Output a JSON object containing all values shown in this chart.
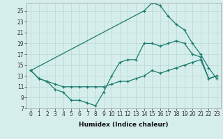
{
  "xlabel": "Humidex (Indice chaleur)",
  "bg_color": "#d5eeeb",
  "line_color": "#1a7a6e",
  "grid_color": "#b8d8d4",
  "xlim": [
    -0.5,
    23.5
  ],
  "ylim": [
    7,
    26.5
  ],
  "xticks": [
    0,
    1,
    2,
    3,
    4,
    5,
    6,
    7,
    8,
    9,
    10,
    11,
    12,
    13,
    14,
    15,
    16,
    17,
    18,
    19,
    20,
    21,
    22,
    23
  ],
  "yticks": [
    7,
    9,
    11,
    13,
    15,
    17,
    19,
    21,
    23,
    25
  ],
  "series1_x": [
    0,
    1,
    2,
    3,
    4,
    5,
    6,
    7,
    8,
    9,
    10,
    11,
    12,
    13,
    14,
    15,
    16,
    17,
    18,
    19,
    20,
    21,
    22,
    23
  ],
  "series1_y": [
    14,
    12.5,
    12,
    10.5,
    10,
    8.5,
    8.5,
    8,
    7.5,
    10,
    13,
    15.5,
    16,
    16,
    19,
    19,
    18.5,
    19,
    19.5,
    19,
    17,
    16.5,
    12.5,
    13
  ],
  "series2_x": [
    0,
    1,
    2,
    3,
    4,
    5,
    6,
    7,
    8,
    9,
    10,
    11,
    12,
    13,
    14,
    15,
    16,
    17,
    18,
    19,
    20,
    21,
    22,
    23
  ],
  "series2_y": [
    14,
    12.5,
    12,
    11.5,
    11,
    11,
    11,
    11,
    11,
    11,
    11.5,
    12,
    12,
    12.5,
    13,
    14,
    13.5,
    14,
    14.5,
    15,
    15.5,
    16,
    12.5,
    13
  ],
  "series3_x": [
    0,
    14,
    15,
    16,
    17,
    18,
    19,
    20,
    21,
    22,
    23
  ],
  "series3_y": [
    14,
    25,
    26.5,
    26,
    24,
    22.5,
    21.5,
    19,
    17,
    14.5,
    12.5
  ],
  "xlabel_fontsize": 6.5,
  "tick_fontsize": 5.5
}
